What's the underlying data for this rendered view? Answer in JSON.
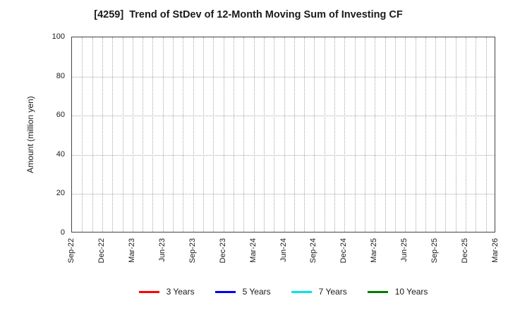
{
  "chart_data": {
    "type": "line",
    "title": "[4259]  Trend of StDev of 12-Month Moving Sum of Investing CF",
    "xlabel": "",
    "ylabel": "Amount (million yen)",
    "ylim": [
      0,
      100
    ],
    "yticks": [
      0,
      20,
      40,
      60,
      80,
      100
    ],
    "x_tick_labels": [
      "Sep-22",
      "Dec-22",
      "Mar-23",
      "Jun-23",
      "Sep-23",
      "Dec-23",
      "Mar-24",
      "Jun-24",
      "Sep-24",
      "Dec-24",
      "Mar-25",
      "Jun-25",
      "Sep-25",
      "Dec-25",
      "Mar-26"
    ],
    "x_months_total": 42,
    "grid": "dotted",
    "legend_position": "bottom",
    "series": [
      {
        "name": "3 Years",
        "color": "#ff0000",
        "values": []
      },
      {
        "name": "5 Years",
        "color": "#0000ff",
        "values": []
      },
      {
        "name": "7 Years",
        "color": "#00e5e5",
        "values": []
      },
      {
        "name": "10 Years",
        "color": "#007d00",
        "values": []
      }
    ]
  }
}
